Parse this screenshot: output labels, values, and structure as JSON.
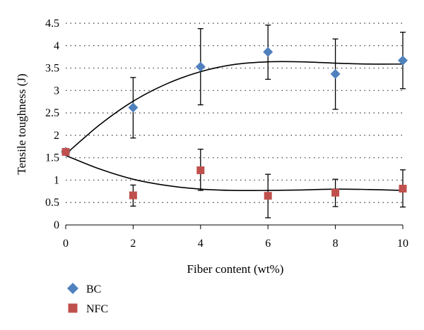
{
  "chart_data": {
    "type": "scatter",
    "title": "",
    "xlabel": "Fiber content (wt%)",
    "ylabel": "Tensile toughness (J)",
    "xlim": [
      0,
      10
    ],
    "ylim": [
      0,
      4.5
    ],
    "x_ticks": [
      "0",
      "2",
      "4",
      "6",
      "8",
      "10"
    ],
    "y_ticks": [
      "0",
      "0.5",
      "1",
      "1.5",
      "2",
      "2.5",
      "3",
      "3.5",
      "4",
      "4.5"
    ],
    "grid": "horizontal dotted",
    "legend_position": "bottom-left",
    "series": [
      {
        "name": "BC",
        "marker": "diamond",
        "color": "#4F81BD",
        "x": [
          0,
          2,
          4,
          6,
          8,
          10
        ],
        "y": [
          1.63,
          2.62,
          3.53,
          3.86,
          3.37,
          3.67
        ],
        "err_low": [
          1.63,
          1.94,
          2.68,
          3.25,
          2.58,
          3.04
        ],
        "err_high": [
          1.63,
          3.29,
          4.38,
          4.46,
          4.15,
          4.3
        ],
        "trend": [
          [
            0,
            1.58
          ],
          [
            1,
            2.23
          ],
          [
            2,
            2.76
          ],
          [
            3,
            3.15
          ],
          [
            4,
            3.42
          ],
          [
            5,
            3.58
          ],
          [
            6,
            3.64
          ],
          [
            7,
            3.64
          ],
          [
            8,
            3.61
          ],
          [
            9,
            3.59
          ],
          [
            10,
            3.59
          ]
        ]
      },
      {
        "name": "NFC",
        "marker": "square",
        "color": "#C0504D",
        "x": [
          0,
          2,
          4,
          6,
          8,
          10
        ],
        "y": [
          1.63,
          0.66,
          1.22,
          0.65,
          0.72,
          0.81
        ],
        "err_low": [
          1.63,
          0.42,
          0.77,
          0.16,
          0.41,
          0.4
        ],
        "err_high": [
          1.63,
          0.89,
          1.69,
          1.13,
          1.02,
          1.23
        ],
        "trend": [
          [
            0,
            1.55
          ],
          [
            1,
            1.25
          ],
          [
            2,
            1.02
          ],
          [
            3,
            0.88
          ],
          [
            4,
            0.8
          ],
          [
            5,
            0.77
          ],
          [
            6,
            0.77
          ],
          [
            7,
            0.78
          ],
          [
            8,
            0.8
          ],
          [
            9,
            0.79
          ],
          [
            10,
            0.77
          ]
        ]
      }
    ]
  }
}
